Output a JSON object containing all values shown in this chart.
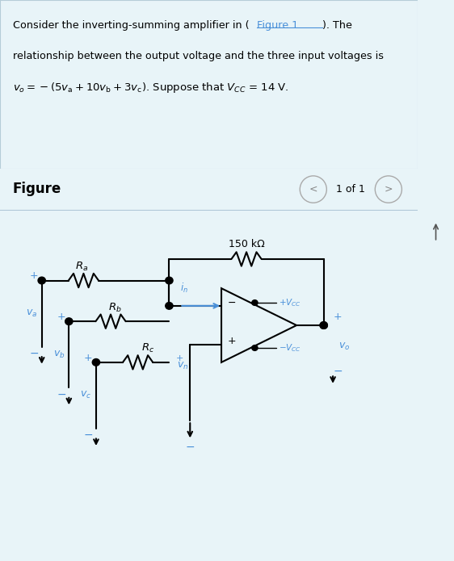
{
  "bg_color_top": "#e8f4f8",
  "bg_color_circuit": "#ffffff",
  "blue_color": "#4a90d9",
  "lw": 1.5,
  "res150_label": "150 kΩ",
  "Ra_label": "$R_a$",
  "Rb_label": "$R_b$",
  "Rc_label": "$R_c$",
  "in_label": "$i_n$",
  "vn_label": "$v_n$",
  "va_label": "$v_a$",
  "vb_label": "$v_b$",
  "vc_label": "$v_c$",
  "vo_label": "$v_o$",
  "vcc_plus_label": "$+V_{CC}$",
  "vcc_minus_label": "$-V_{CC}$",
  "figure_label": "Figure",
  "nav_label": "1 of 1"
}
